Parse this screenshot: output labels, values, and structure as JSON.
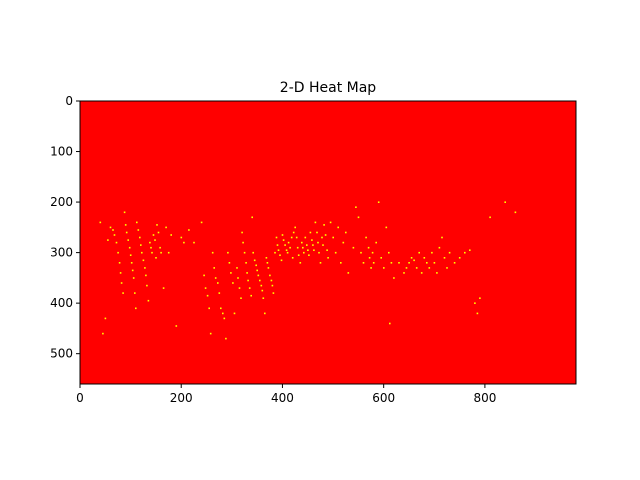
{
  "chart_data": {
    "type": "heatmap",
    "title": "2-D Heat Map",
    "xlabel": "",
    "ylabel": "",
    "xlim": [
      0,
      980
    ],
    "ylim": [
      560,
      0
    ],
    "x_ticks": [
      0,
      200,
      400,
      600,
      800
    ],
    "y_ticks": [
      0,
      100,
      200,
      300,
      400,
      500
    ],
    "grid": false,
    "legend": "none",
    "colormap": {
      "low": "#ff0000",
      "high": "#ffff00"
    },
    "points": [
      [
        40,
        240
      ],
      [
        45,
        460
      ],
      [
        50,
        430
      ],
      [
        55,
        275
      ],
      [
        60,
        250
      ],
      [
        65,
        255
      ],
      [
        68,
        265
      ],
      [
        72,
        280
      ],
      [
        75,
        300
      ],
      [
        78,
        320
      ],
      [
        80,
        340
      ],
      [
        82,
        360
      ],
      [
        85,
        380
      ],
      [
        88,
        220
      ],
      [
        90,
        245
      ],
      [
        92,
        260
      ],
      [
        95,
        275
      ],
      [
        98,
        290
      ],
      [
        100,
        305
      ],
      [
        102,
        320
      ],
      [
        104,
        335
      ],
      [
        106,
        350
      ],
      [
        108,
        380
      ],
      [
        110,
        410
      ],
      [
        112,
        240
      ],
      [
        115,
        255
      ],
      [
        118,
        270
      ],
      [
        120,
        285
      ],
      [
        122,
        300
      ],
      [
        125,
        315
      ],
      [
        128,
        330
      ],
      [
        130,
        345
      ],
      [
        132,
        365
      ],
      [
        135,
        395
      ],
      [
        138,
        280
      ],
      [
        140,
        290
      ],
      [
        142,
        300
      ],
      [
        145,
        265
      ],
      [
        148,
        275
      ],
      [
        150,
        310
      ],
      [
        152,
        245
      ],
      [
        155,
        260
      ],
      [
        158,
        290
      ],
      [
        160,
        300
      ],
      [
        165,
        370
      ],
      [
        170,
        250
      ],
      [
        175,
        300
      ],
      [
        180,
        265
      ],
      [
        190,
        445
      ],
      [
        200,
        270
      ],
      [
        205,
        280
      ],
      [
        215,
        255
      ],
      [
        225,
        280
      ],
      [
        240,
        240
      ],
      [
        245,
        345
      ],
      [
        248,
        370
      ],
      [
        252,
        385
      ],
      [
        255,
        410
      ],
      [
        258,
        460
      ],
      [
        262,
        300
      ],
      [
        265,
        330
      ],
      [
        268,
        350
      ],
      [
        272,
        360
      ],
      [
        275,
        380
      ],
      [
        278,
        410
      ],
      [
        282,
        420
      ],
      [
        285,
        430
      ],
      [
        288,
        470
      ],
      [
        292,
        300
      ],
      [
        295,
        320
      ],
      [
        298,
        340
      ],
      [
        302,
        360
      ],
      [
        305,
        420
      ],
      [
        310,
        330
      ],
      [
        312,
        350
      ],
      [
        315,
        370
      ],
      [
        318,
        390
      ],
      [
        320,
        260
      ],
      [
        322,
        280
      ],
      [
        325,
        300
      ],
      [
        328,
        320
      ],
      [
        330,
        340
      ],
      [
        332,
        355
      ],
      [
        335,
        370
      ],
      [
        338,
        385
      ],
      [
        340,
        230
      ],
      [
        342,
        300
      ],
      [
        345,
        315
      ],
      [
        348,
        325
      ],
      [
        350,
        335
      ],
      [
        352,
        345
      ],
      [
        355,
        355
      ],
      [
        358,
        365
      ],
      [
        360,
        375
      ],
      [
        362,
        390
      ],
      [
        365,
        420
      ],
      [
        368,
        310
      ],
      [
        370,
        320
      ],
      [
        372,
        330
      ],
      [
        375,
        345
      ],
      [
        378,
        355
      ],
      [
        380,
        365
      ],
      [
        382,
        380
      ],
      [
        385,
        300
      ],
      [
        388,
        270
      ],
      [
        390,
        285
      ],
      [
        392,
        295
      ],
      [
        395,
        305
      ],
      [
        398,
        315
      ],
      [
        400,
        265
      ],
      [
        402,
        275
      ],
      [
        405,
        285
      ],
      [
        408,
        295
      ],
      [
        410,
        300
      ],
      [
        412,
        280
      ],
      [
        415,
        290
      ],
      [
        418,
        270
      ],
      [
        420,
        310
      ],
      [
        422,
        260
      ],
      [
        425,
        250
      ],
      [
        428,
        270
      ],
      [
        430,
        290
      ],
      [
        432,
        305
      ],
      [
        435,
        320
      ],
      [
        438,
        280
      ],
      [
        440,
        290
      ],
      [
        442,
        300
      ],
      [
        445,
        270
      ],
      [
        448,
        285
      ],
      [
        450,
        295
      ],
      [
        452,
        305
      ],
      [
        455,
        260
      ],
      [
        458,
        275
      ],
      [
        460,
        285
      ],
      [
        462,
        295
      ],
      [
        465,
        240
      ],
      [
        468,
        260
      ],
      [
        470,
        280
      ],
      [
        472,
        300
      ],
      [
        475,
        320
      ],
      [
        478,
        270
      ],
      [
        480,
        285
      ],
      [
        482,
        245
      ],
      [
        485,
        265
      ],
      [
        488,
        295
      ],
      [
        490,
        310
      ],
      [
        495,
        240
      ],
      [
        500,
        270
      ],
      [
        505,
        300
      ],
      [
        510,
        250
      ],
      [
        515,
        320
      ],
      [
        520,
        280
      ],
      [
        525,
        260
      ],
      [
        530,
        340
      ],
      [
        540,
        290
      ],
      [
        545,
        210
      ],
      [
        550,
        230
      ],
      [
        555,
        300
      ],
      [
        560,
        320
      ],
      [
        565,
        270
      ],
      [
        570,
        290
      ],
      [
        572,
        310
      ],
      [
        575,
        330
      ],
      [
        578,
        300
      ],
      [
        580,
        320
      ],
      [
        585,
        280
      ],
      [
        590,
        200
      ],
      [
        595,
        310
      ],
      [
        600,
        330
      ],
      [
        605,
        250
      ],
      [
        610,
        300
      ],
      [
        612,
        440
      ],
      [
        615,
        320
      ],
      [
        620,
        350
      ],
      [
        630,
        320
      ],
      [
        640,
        340
      ],
      [
        645,
        330
      ],
      [
        650,
        320
      ],
      [
        655,
        310
      ],
      [
        660,
        315
      ],
      [
        665,
        330
      ],
      [
        670,
        300
      ],
      [
        675,
        340
      ],
      [
        680,
        310
      ],
      [
        685,
        320
      ],
      [
        690,
        330
      ],
      [
        695,
        300
      ],
      [
        700,
        320
      ],
      [
        705,
        340
      ],
      [
        710,
        290
      ],
      [
        715,
        270
      ],
      [
        720,
        310
      ],
      [
        725,
        330
      ],
      [
        730,
        300
      ],
      [
        740,
        320
      ],
      [
        750,
        310
      ],
      [
        760,
        300
      ],
      [
        770,
        295
      ],
      [
        780,
        400
      ],
      [
        785,
        420
      ],
      [
        790,
        390
      ],
      [
        810,
        230
      ],
      [
        840,
        200
      ],
      [
        860,
        220
      ]
    ]
  }
}
